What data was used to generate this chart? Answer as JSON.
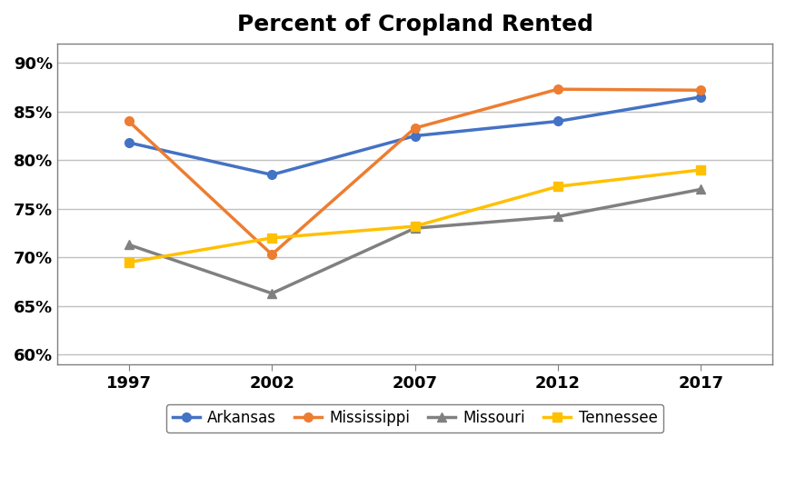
{
  "title": "Percent of Cropland Rented",
  "years": [
    1997,
    2002,
    2007,
    2012,
    2017
  ],
  "series": {
    "Arkansas": {
      "values": [
        81.8,
        78.5,
        82.5,
        84.0,
        86.5
      ],
      "color": "#4472C4",
      "marker": "o"
    },
    "Mississippi": {
      "values": [
        84.0,
        70.3,
        83.3,
        87.3,
        87.2
      ],
      "color": "#ED7D31",
      "marker": "o"
    },
    "Missouri": {
      "values": [
        71.3,
        66.3,
        73.0,
        74.2,
        77.0
      ],
      "color": "#808080",
      "marker": "^"
    },
    "Tennessee": {
      "values": [
        69.5,
        72.0,
        73.2,
        77.3,
        79.0
      ],
      "color": "#FFC000",
      "marker": "s"
    }
  },
  "ylim": [
    59,
    92
  ],
  "yticks": [
    60,
    65,
    70,
    75,
    80,
    85,
    90
  ],
  "ytick_labels": [
    "60%",
    "65%",
    "70%",
    "75%",
    "80%",
    "85%",
    "90%"
  ],
  "grid_color": "#C0C0C0",
  "background_color": "#FFFFFF",
  "title_fontsize": 18,
  "legend_fontsize": 12,
  "tick_fontsize": 13,
  "spine_color": "#7F7F7F"
}
